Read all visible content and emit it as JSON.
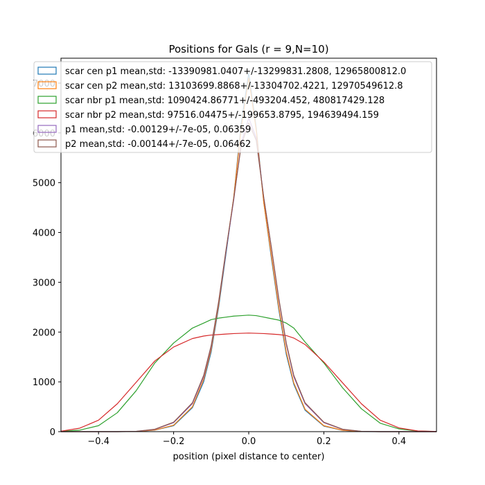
{
  "chart_data": {
    "type": "histogram",
    "title": "Positions for Gals (r = 9,N=10)",
    "xlabel": "position (pixel distance to center)",
    "ylabel": "",
    "xlim": [
      -0.5,
      0.5
    ],
    "ylim": [
      0,
      7500
    ],
    "grid": false,
    "legend_position": "top-left",
    "xticks": [
      -0.4,
      -0.2,
      0.0,
      0.2,
      0.4
    ],
    "xtick_labels": [
      "−0.4",
      "−0.2",
      "0.0",
      "0.2",
      "0.4"
    ],
    "yticks": [
      0,
      1000,
      2000,
      3000,
      4000,
      5000,
      6000,
      7000
    ],
    "ytick_labels": [
      "0",
      "1000",
      "2000",
      "3000",
      "4000",
      "5000",
      "6000",
      "7000"
    ],
    "x": [
      -0.5,
      -0.45,
      -0.4,
      -0.35,
      -0.3,
      -0.25,
      -0.2,
      -0.15,
      -0.12,
      -0.1,
      -0.08,
      -0.06,
      -0.04,
      -0.02,
      0.0,
      0.02,
      0.04,
      0.06,
      0.08,
      0.1,
      0.12,
      0.15,
      0.2,
      0.25,
      0.3,
      0.35,
      0.4,
      0.45,
      0.5
    ],
    "series": [
      {
        "name": "scar cen p1 mean,std: -13390981.0407+/-13299831.2808, 12965800812.0",
        "color": "#1f77b4",
        "values": [
          0,
          0,
          0,
          0,
          3,
          30,
          120,
          480,
          1000,
          1600,
          2500,
          3600,
          4700,
          6200,
          7200,
          6100,
          4600,
          3500,
          2450,
          1550,
          950,
          430,
          110,
          25,
          2,
          0,
          0,
          0,
          0
        ]
      },
      {
        "name": "scar cen p2 mean,std: 13103699.8868+/-13304702.4221, 12970549612.8",
        "color": "#ff7f0e",
        "values": [
          0,
          0,
          0,
          0,
          3,
          32,
          130,
          500,
          1050,
          1650,
          2550,
          3650,
          4700,
          6100,
          7100,
          6050,
          4600,
          3550,
          2500,
          1600,
          980,
          450,
          120,
          28,
          3,
          0,
          0,
          0,
          0
        ]
      },
      {
        "name": "scar nbr p1 mean,std: 1090424.86771+/-493204.452, 480817429.128",
        "color": "#2ca02c",
        "values": [
          5,
          30,
          120,
          380,
          820,
          1380,
          1780,
          2080,
          2180,
          2250,
          2280,
          2300,
          2320,
          2330,
          2340,
          2330,
          2300,
          2270,
          2240,
          2180,
          2080,
          1800,
          1380,
          880,
          460,
          170,
          55,
          12,
          2
        ]
      },
      {
        "name": "scar nbr p2 mean,std: 97516.04475+/-199653.8795, 194639494.159",
        "color": "#d62728",
        "values": [
          10,
          70,
          230,
          560,
          990,
          1420,
          1700,
          1870,
          1920,
          1940,
          1950,
          1960,
          1970,
          1975,
          1980,
          1975,
          1970,
          1960,
          1950,
          1930,
          1880,
          1750,
          1400,
          980,
          560,
          230,
          75,
          15,
          3
        ]
      },
      {
        "name": "p1 mean,std: -0.00129+/-7e-05, 0.06359",
        "color": "#9467bd",
        "values": [
          0,
          0,
          0,
          0,
          5,
          45,
          180,
          560,
          1100,
          1700,
          2600,
          3650,
          4650,
          5800,
          6300,
          5900,
          4700,
          3700,
          2650,
          1750,
          1100,
          560,
          180,
          45,
          5,
          0,
          0,
          0,
          0
        ]
      },
      {
        "name": "p2 mean,std: -0.00144+/-7e-05, 0.06462",
        "color": "#8c564b",
        "values": [
          0,
          0,
          0,
          0,
          6,
          50,
          190,
          580,
          1130,
          1730,
          2620,
          3680,
          4680,
          5750,
          6200,
          5850,
          4700,
          3720,
          2680,
          1780,
          1130,
          580,
          190,
          50,
          6,
          0,
          0,
          0,
          0
        ]
      }
    ]
  }
}
